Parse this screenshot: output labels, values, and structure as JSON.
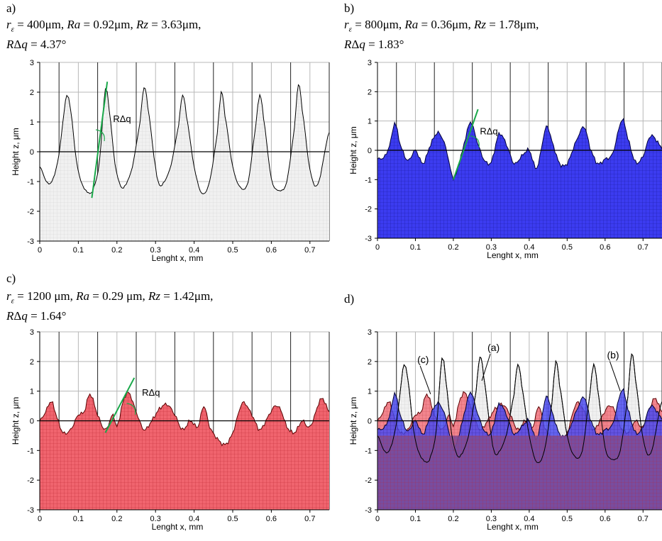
{
  "panels": [
    {
      "id": "a",
      "label": "a)",
      "line1": {
        "r": "400μm",
        "ra": "0.92μm",
        "rz": "3.63μm"
      },
      "line2": {
        "rdq": "4.37°"
      },
      "colors": {
        "fill": "#f1f1f1",
        "grid": "#d2d2d2",
        "stroke": "#000000"
      },
      "annotation_label": "RΔq"
    },
    {
      "id": "b",
      "label": "b)",
      "line1": {
        "r": "800μm",
        "ra": "0.36μm",
        "rz": "1.78μm"
      },
      "line2": {
        "rdq": "1.83°"
      },
      "colors": {
        "fill": "#3c3cf0",
        "grid": "#1a1aa0",
        "stroke": "#00003c"
      },
      "annotation_label": "RΔq"
    },
    {
      "id": "c",
      "label": "c)",
      "line1": {
        "r": "1200 μm",
        "ra": "0.29 μm",
        "rz": "1.42μm"
      },
      "line2": {
        "rdq": "1.64°"
      },
      "colors": {
        "fill": "#f0646e",
        "grid": "#c02c38",
        "stroke": "#5a0000"
      },
      "annotation_label": "RΔq"
    },
    {
      "id": "d",
      "label": "d)",
      "callouts": [
        "(a)",
        "(b)",
        "(c)"
      ],
      "colors": {
        "fill": "#7a4c98",
        "grid": "#b03050",
        "stroke": "#000000"
      }
    }
  ],
  "chart_data": [
    {
      "type": "area",
      "panel": "a",
      "xlabel": "Lenght x, mm",
      "ylabel": "Height z, μm",
      "xlim": [
        0,
        0.75
      ],
      "ylim": [
        -3,
        3
      ],
      "x_ticks": [
        0,
        0.1,
        0.2,
        0.3,
        0.4,
        0.5,
        0.6,
        0.7
      ],
      "y_ticks": [
        -3,
        -2,
        -1,
        0,
        1,
        2,
        3
      ],
      "series": [
        {
          "x": [
            0,
            0.02,
            0.035,
            0.05,
            0.06,
            0.07,
            0.08,
            0.095,
            0.11,
            0.12,
            0.13,
            0.14,
            0.155,
            0.17,
            0.18,
            0.195,
            0.21,
            0.22,
            0.24,
            0.26,
            0.27,
            0.28,
            0.3,
            0.31,
            0.32,
            0.34,
            0.36,
            0.37,
            0.38,
            0.4,
            0.42,
            0.44,
            0.46,
            0.47,
            0.48,
            0.5,
            0.52,
            0.54,
            0.56,
            0.57,
            0.58,
            0.6,
            0.62,
            0.64,
            0.66,
            0.67,
            0.68,
            0.7,
            0.72,
            0.75
          ],
          "y": [
            -0.5,
            -1.05,
            -0.9,
            -0.1,
            1.0,
            1.9,
            1.4,
            -0.3,
            -1.1,
            -1.3,
            -1.4,
            -1.2,
            -0.3,
            2.1,
            1.4,
            -0.4,
            -1.15,
            -1.15,
            -0.5,
            1.0,
            2.15,
            1.5,
            -0.5,
            -1.1,
            -1.05,
            -0.45,
            0.9,
            1.9,
            1.2,
            -0.5,
            -1.4,
            -1.0,
            0.6,
            2.0,
            1.2,
            -0.5,
            -1.2,
            -1.0,
            0.9,
            1.9,
            1.1,
            -0.9,
            -1.3,
            -1.0,
            0.8,
            2.25,
            1.4,
            -0.6,
            -1.1,
            0.65
          ]
        }
      ]
    },
    {
      "type": "area",
      "panel": "b",
      "xlabel": "Lenght x, mm",
      "ylabel": "Height z, μm",
      "xlim": [
        0,
        0.75
      ],
      "ylim": [
        -3,
        3
      ],
      "x_ticks": [
        0,
        0.1,
        0.2,
        0.3,
        0.4,
        0.5,
        0.6,
        0.7
      ],
      "y_ticks": [
        -3,
        -2,
        -1,
        0,
        1,
        2,
        3
      ],
      "series": [
        {
          "x": [
            0,
            0.02,
            0.035,
            0.045,
            0.06,
            0.08,
            0.1,
            0.12,
            0.14,
            0.16,
            0.18,
            0.2,
            0.22,
            0.245,
            0.26,
            0.28,
            0.3,
            0.32,
            0.34,
            0.36,
            0.38,
            0.4,
            0.42,
            0.445,
            0.46,
            0.48,
            0.5,
            0.52,
            0.545,
            0.56,
            0.58,
            0.6,
            0.62,
            0.645,
            0.66,
            0.68,
            0.7,
            0.72,
            0.75
          ],
          "y": [
            -0.3,
            -0.2,
            0.3,
            0.95,
            0.2,
            -0.35,
            0.0,
            -0.45,
            0.2,
            0.6,
            0.1,
            -0.95,
            -0.2,
            0.95,
            0.4,
            -0.3,
            -0.4,
            0.55,
            0.2,
            -0.45,
            -0.2,
            0.0,
            -0.6,
            0.8,
            0.3,
            -0.45,
            -0.45,
            0.2,
            0.8,
            0.1,
            -0.45,
            -0.3,
            -0.1,
            1.05,
            0.4,
            -0.4,
            -0.2,
            0.5,
            0.1
          ]
        }
      ]
    },
    {
      "type": "area",
      "panel": "c",
      "xlabel": "Lenght x, mm",
      "ylabel": "Height z, μm",
      "xlim": [
        0,
        0.75
      ],
      "ylim": [
        -3,
        3
      ],
      "x_ticks": [
        0,
        0.1,
        0.2,
        0.3,
        0.4,
        0.5,
        0.6,
        0.7
      ],
      "y_ticks": [
        -3,
        -2,
        -1,
        0,
        1,
        2,
        3
      ],
      "series": [
        {
          "x": [
            0,
            0.015,
            0.03,
            0.045,
            0.06,
            0.08,
            0.1,
            0.115,
            0.13,
            0.15,
            0.17,
            0.19,
            0.2,
            0.215,
            0.23,
            0.25,
            0.27,
            0.29,
            0.31,
            0.33,
            0.35,
            0.37,
            0.39,
            0.41,
            0.425,
            0.44,
            0.46,
            0.48,
            0.5,
            0.525,
            0.55,
            0.57,
            0.59,
            0.61,
            0.625,
            0.64,
            0.66,
            0.68,
            0.7,
            0.73,
            0.75
          ],
          "y": [
            0.0,
            0.3,
            0.65,
            0.1,
            -0.4,
            -0.3,
            0.2,
            0.3,
            0.9,
            0.2,
            -0.3,
            0.2,
            -0.2,
            0.6,
            0.95,
            0.3,
            -0.3,
            0.0,
            0.4,
            0.55,
            0.2,
            -0.3,
            0.0,
            -0.2,
            0.5,
            -0.2,
            -0.6,
            -0.8,
            -0.4,
            0.6,
            0.2,
            -0.3,
            0.1,
            0.5,
            0.35,
            -0.2,
            -0.4,
            0.0,
            -0.2,
            0.75,
            0.3
          ]
        }
      ]
    },
    {
      "type": "area",
      "panel": "d",
      "xlabel": "Lenght x, mm",
      "ylabel": "Height z, μm",
      "xlim": [
        0,
        0.75
      ],
      "ylim": [
        -3,
        3
      ],
      "x_ticks": [
        0,
        0.1,
        0.2,
        0.3,
        0.4,
        0.5,
        0.6,
        0.7
      ],
      "y_ticks": [
        -3,
        -2,
        -1,
        0,
        1,
        2,
        3
      ],
      "overlay_of": [
        "a",
        "b",
        "c"
      ]
    }
  ]
}
